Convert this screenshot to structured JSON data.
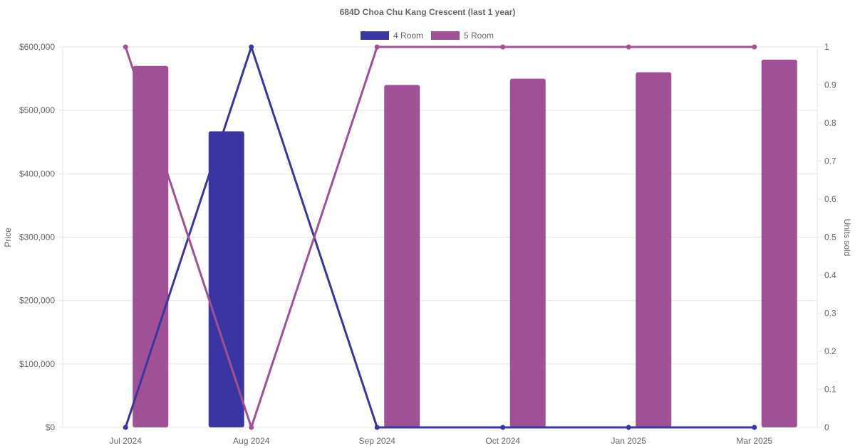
{
  "chart_data": {
    "type": "bar",
    "title": "684D Choa Chu Kang Crescent (last 1 year)",
    "categories": [
      "Jul 2024",
      "Aug 2024",
      "Sep 2024",
      "Oct 2024",
      "Jan 2025",
      "Mar 2025"
    ],
    "ylabel": "Price",
    "y2label": "Units sold",
    "ylim": [
      0,
      600000
    ],
    "y2lim": [
      0,
      1
    ],
    "yticks": [
      "$0",
      "$100,000",
      "$200,000",
      "$300,000",
      "$400,000",
      "$500,000",
      "$600,000"
    ],
    "y2ticks": [
      "0",
      "0.1",
      "0.2",
      "0.3",
      "0.4",
      "0.5",
      "0.6",
      "0.7",
      "0.8",
      "0.9",
      "1"
    ],
    "grid": true,
    "legend_position": "top-center",
    "series": [
      {
        "name": "4 Room",
        "color": "#3a35a2",
        "price": [
          null,
          467000,
          null,
          null,
          null,
          null
        ],
        "units_sold": [
          0,
          1,
          0,
          0,
          0,
          0
        ]
      },
      {
        "name": "5 Room",
        "color": "#a05195",
        "price": [
          570000,
          null,
          540000,
          550000,
          560000,
          580000
        ],
        "units_sold": [
          1,
          0,
          1,
          1,
          1,
          1
        ]
      }
    ]
  }
}
